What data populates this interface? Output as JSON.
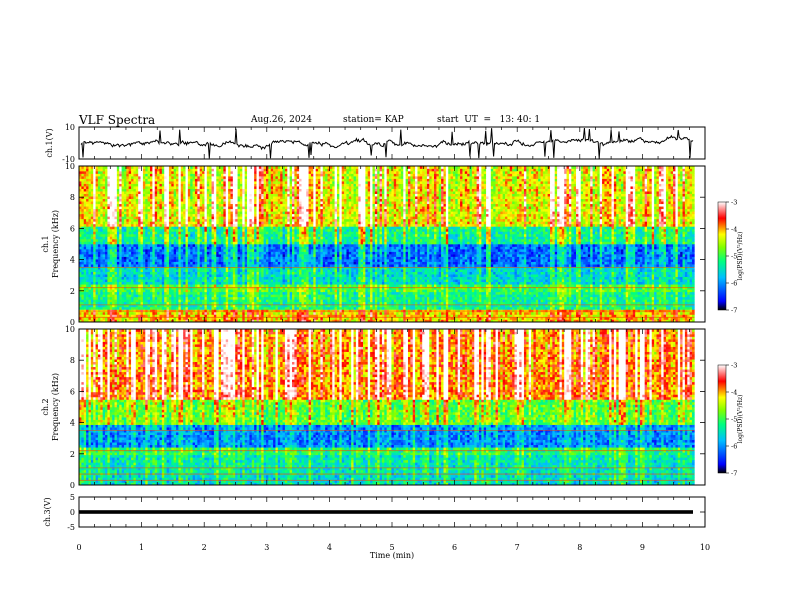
{
  "header": {
    "title": "VLF Spectra",
    "date": "Aug.26, 2024",
    "station": "station= KAP",
    "start_time": "start  UT  =   13: 40: 1"
  },
  "colors": {
    "axes": "#000000",
    "trace": "#000000",
    "colormap": [
      "#000080",
      "#0000ff",
      "#00ffff",
      "#00ff00",
      "#ffff00",
      "#ff0000",
      "#ffffff"
    ]
  },
  "chart_data": [
    {
      "type": "line",
      "id": "ch1-waveform",
      "ylabel": "ch.1(V)",
      "ylim": [
        -10,
        10
      ],
      "y_ticks": [
        "10",
        "-10"
      ],
      "xlim": [
        0,
        10
      ],
      "description_values": {
        "baseline_v": 0,
        "typical_range_v": [
          -4,
          4
        ],
        "spikes_to_limits": true
      }
    },
    {
      "type": "heatmap",
      "id": "ch1-spectrogram",
      "ylabel": "ch.1\nFrequency  (kHz)",
      "ylabel_lines": [
        "ch.1",
        "Frequency  (kHz)"
      ],
      "ylim": [
        0,
        10
      ],
      "y_ticks": [
        "0",
        "2",
        "4",
        "6",
        "8",
        "10"
      ],
      "xlim": [
        0,
        9.83
      ],
      "colorbar": {
        "label": "log(PSD)(V²/Hz)",
        "range": [
          -7,
          -3
        ],
        "ticks": [
          "-3",
          "-4",
          "-5",
          "-6",
          "-7"
        ]
      },
      "bands_log_psd": [
        {
          "freq_khz": [
            0,
            0.8
          ],
          "level": -4.2
        },
        {
          "freq_khz": [
            0.8,
            2.0
          ],
          "level": -5.3
        },
        {
          "freq_khz": [
            2.0,
            2.4
          ],
          "level": -5.0
        },
        {
          "freq_khz": [
            2.4,
            3.6
          ],
          "level": -5.6
        },
        {
          "freq_khz": [
            3.6,
            5.0
          ],
          "level": -6.2
        },
        {
          "freq_khz": [
            5.0,
            6.2
          ],
          "level": -5.3
        },
        {
          "freq_khz": [
            6.2,
            10.0
          ],
          "level": -4.3
        }
      ]
    },
    {
      "type": "heatmap",
      "id": "ch2-spectrogram",
      "ylabel": "ch.2\nFrequency  (kHz)",
      "ylabel_lines": [
        "ch.2",
        "Frequency  (kHz)"
      ],
      "ylim": [
        0,
        10
      ],
      "y_ticks": [
        "0",
        "2",
        "4",
        "6",
        "8",
        "10"
      ],
      "xlim": [
        0,
        9.83
      ],
      "colorbar": {
        "label": "log(PSD)(V²/Hz)",
        "range": [
          -7,
          -3
        ],
        "ticks": [
          "-3",
          "-4",
          "-5",
          "-6",
          "-7"
        ]
      },
      "bands_log_psd": [
        {
          "freq_khz": [
            0,
            0.6
          ],
          "level": -5.6
        },
        {
          "freq_khz": [
            0.6,
            2.0
          ],
          "level": -5.5
        },
        {
          "freq_khz": [
            2.0,
            2.4
          ],
          "level": -5.2
        },
        {
          "freq_khz": [
            2.4,
            3.8
          ],
          "level": -6.1
        },
        {
          "freq_khz": [
            3.8,
            5.5
          ],
          "level": -4.9
        },
        {
          "freq_khz": [
            5.5,
            10.0
          ],
          "level": -3.9
        }
      ]
    },
    {
      "type": "line",
      "id": "ch3-waveform",
      "ylabel": "ch.3(V)",
      "ylim": [
        -5,
        5
      ],
      "y_ticks": [
        "5",
        "0",
        "-5"
      ],
      "xlim": [
        0,
        10
      ],
      "description_values": {
        "baseline_v": 0,
        "band_v": [
          -0.6,
          0.6
        ]
      }
    }
  ],
  "x_axis": {
    "label": "Time  (min)",
    "range": [
      0,
      10
    ],
    "ticks": [
      "0",
      "1",
      "2",
      "3",
      "4",
      "5",
      "6",
      "7",
      "8",
      "9",
      "10"
    ]
  }
}
